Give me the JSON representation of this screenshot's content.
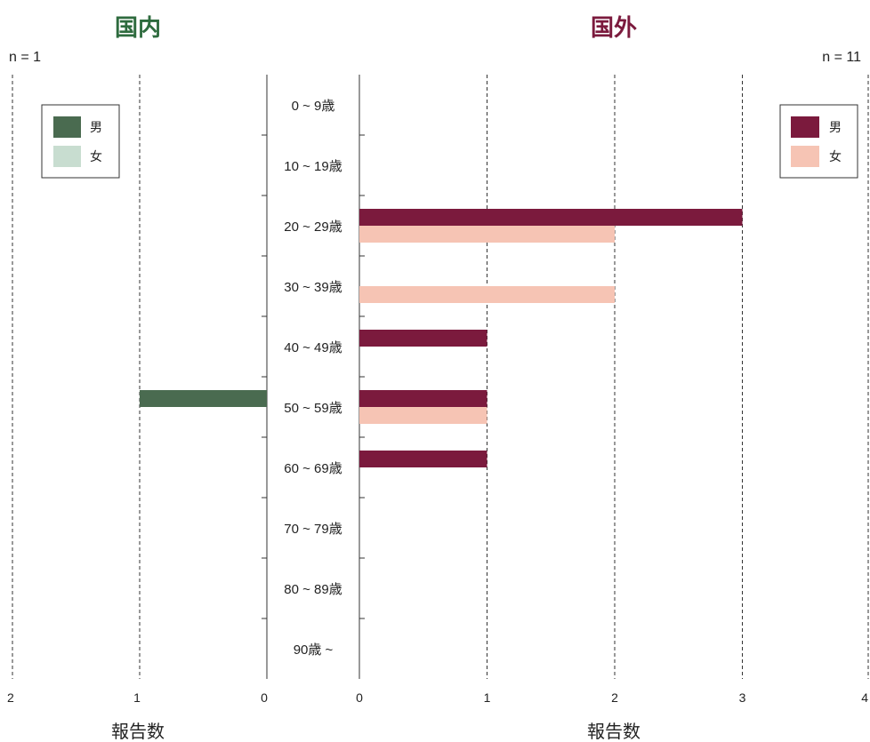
{
  "chart_data": [
    {
      "panel": "domestic",
      "type": "bar",
      "orientation": "horizontal",
      "title": "国内",
      "n_label": "n = 1",
      "xlabel": "報告数",
      "xlim": [
        0,
        2
      ],
      "x_ticks": [
        "0",
        "1",
        "2"
      ],
      "x_direction": "reversed",
      "grid": "vertical-dashed",
      "legend_position": "top-left",
      "categories": [
        "0 ~ 9歳",
        "10 ~ 19歳",
        "20 ~ 29歳",
        "30 ~ 39歳",
        "40 ~ 49歳",
        "50 ~ 59歳",
        "60 ~ 69歳",
        "70 ~ 79歳",
        "80 ~ 89歳",
        "90歳 ~"
      ],
      "series": [
        {
          "name": "男",
          "color": "#4a6b50",
          "values": [
            0,
            0,
            0,
            0,
            0,
            1,
            0,
            0,
            0,
            0
          ]
        },
        {
          "name": "女",
          "color": "#c8ddd0",
          "values": [
            0,
            0,
            0,
            0,
            0,
            0,
            0,
            0,
            0,
            0
          ]
        }
      ]
    },
    {
      "panel": "overseas",
      "type": "bar",
      "orientation": "horizontal",
      "title": "国外",
      "n_label": "n = 11",
      "xlabel": "報告数",
      "xlim": [
        0,
        4
      ],
      "x_ticks": [
        "0",
        "1",
        "2",
        "3",
        "4"
      ],
      "grid": "vertical-dashed",
      "legend_position": "top-right",
      "categories": [
        "0 ~ 9歳",
        "10 ~ 19歳",
        "20 ~ 29歳",
        "30 ~ 39歳",
        "40 ~ 49歳",
        "50 ~ 59歳",
        "60 ~ 69歳",
        "70 ~ 79歳",
        "80 ~ 89歳",
        "90歳 ~"
      ],
      "series": [
        {
          "name": "男",
          "color": "#7b1a3d",
          "values": [
            0,
            0,
            3,
            0,
            1,
            1,
            1,
            0,
            0,
            0
          ]
        },
        {
          "name": "女",
          "color": "#f6c4b4",
          "values": [
            0,
            0,
            2,
            2,
            0,
            1,
            0,
            0,
            0,
            0
          ]
        }
      ]
    }
  ],
  "colors": {
    "domestic_title": "#2e6b3e",
    "overseas_title": "#7b1a3d",
    "text": "#222222"
  }
}
